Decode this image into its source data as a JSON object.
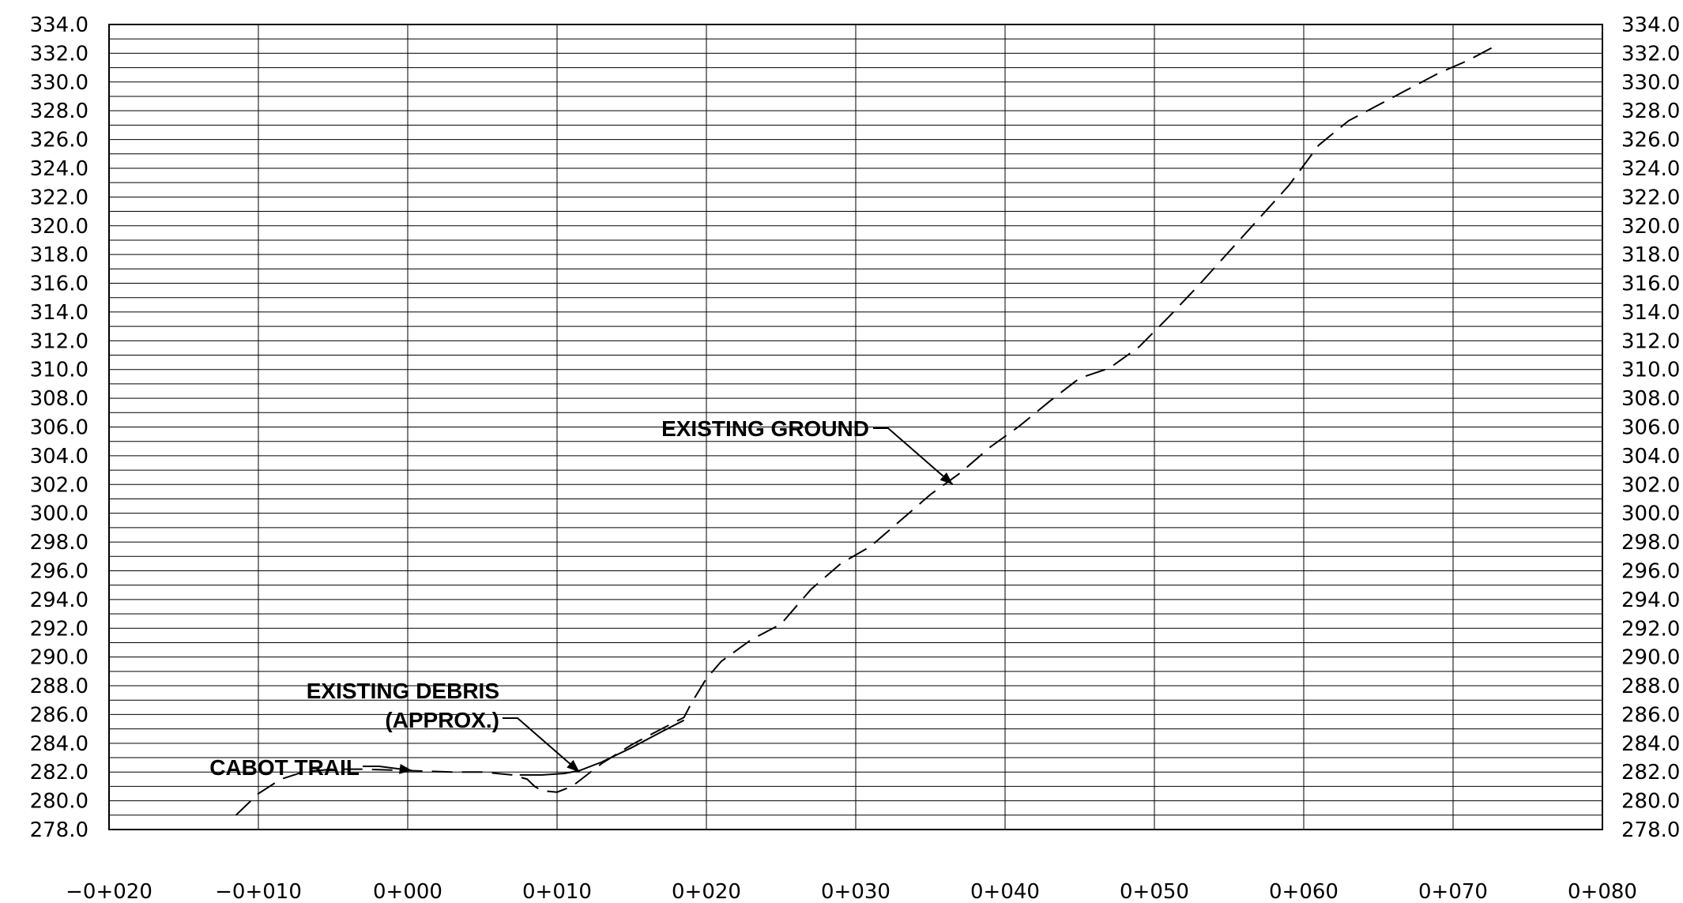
{
  "chart_data": {
    "type": "line",
    "title": "",
    "xlabel": "",
    "ylabel": "",
    "xlim": [
      -20,
      80
    ],
    "ylim": [
      278,
      334
    ],
    "x_major_step": 10,
    "y_major_step": 2,
    "y_minor_step": 1,
    "grid": true,
    "y_ticks_both_sides": true,
    "x_tick_labels": [
      "−0+020",
      "−0+010",
      "0+000",
      "0+010",
      "0+020",
      "0+030",
      "0+040",
      "0+050",
      "0+060",
      "0+070",
      "0+080"
    ],
    "y_tick_labels": [
      "278.0",
      "280.0",
      "282.0",
      "284.0",
      "286.0",
      "288.0",
      "290.0",
      "292.0",
      "294.0",
      "296.0",
      "298.0",
      "300.0",
      "302.0",
      "304.0",
      "306.0",
      "308.0",
      "310.0",
      "312.0",
      "314.0",
      "316.0",
      "318.0",
      "320.0",
      "322.0",
      "324.0",
      "326.0",
      "328.0",
      "330.0",
      "332.0",
      "334.0"
    ],
    "series": [
      {
        "style": "dashed",
        "color": "#000000",
        "x": [
          -11.5,
          -10,
          -8.5,
          -7,
          -5,
          -3,
          0,
          3,
          5,
          7,
          8,
          8.5,
          9,
          10,
          11,
          13,
          15,
          17,
          18.5,
          19,
          20,
          21,
          23,
          25,
          27,
          29,
          31,
          33,
          35,
          37,
          39,
          41,
          43,
          45,
          47,
          49,
          51,
          53,
          55,
          57,
          59,
          61,
          63,
          65,
          67,
          69,
          71,
          73
        ],
        "y": [
          279.0,
          280.5,
          281.5,
          282.0,
          282.2,
          282.2,
          282.1,
          282.0,
          282.0,
          281.8,
          281.5,
          281.0,
          280.7,
          280.6,
          281.0,
          282.6,
          283.9,
          285.0,
          285.8,
          286.8,
          288.5,
          289.7,
          291.2,
          292.3,
          294.7,
          296.5,
          297.7,
          299.5,
          301.3,
          302.8,
          304.6,
          306.1,
          307.8,
          309.4,
          310.1,
          311.6,
          313.7,
          315.9,
          318.2,
          320.5,
          322.8,
          325.6,
          327.3,
          328.4,
          329.5,
          330.6,
          331.5,
          332.6
        ]
      },
      {
        "style": "solid",
        "color": "#000000",
        "x": [
          7.5,
          9,
          10.5,
          11.5,
          13,
          15,
          17,
          18.5
        ],
        "y": [
          281.8,
          281.8,
          281.9,
          282.1,
          282.7,
          283.7,
          284.8,
          285.6
        ]
      }
    ],
    "annotations": [
      {
        "text": "EXISTING GROUND",
        "arrow_to": [
          36.5,
          302.0
        ]
      },
      {
        "text": "EXISTING DEBRIS",
        "arrow_to": [
          11.5,
          282.0
        ]
      },
      {
        "text": "(APPROX.)"
      },
      {
        "text": "CABOT TRAIL",
        "arrow_to": [
          0.3,
          282.1
        ]
      }
    ]
  }
}
